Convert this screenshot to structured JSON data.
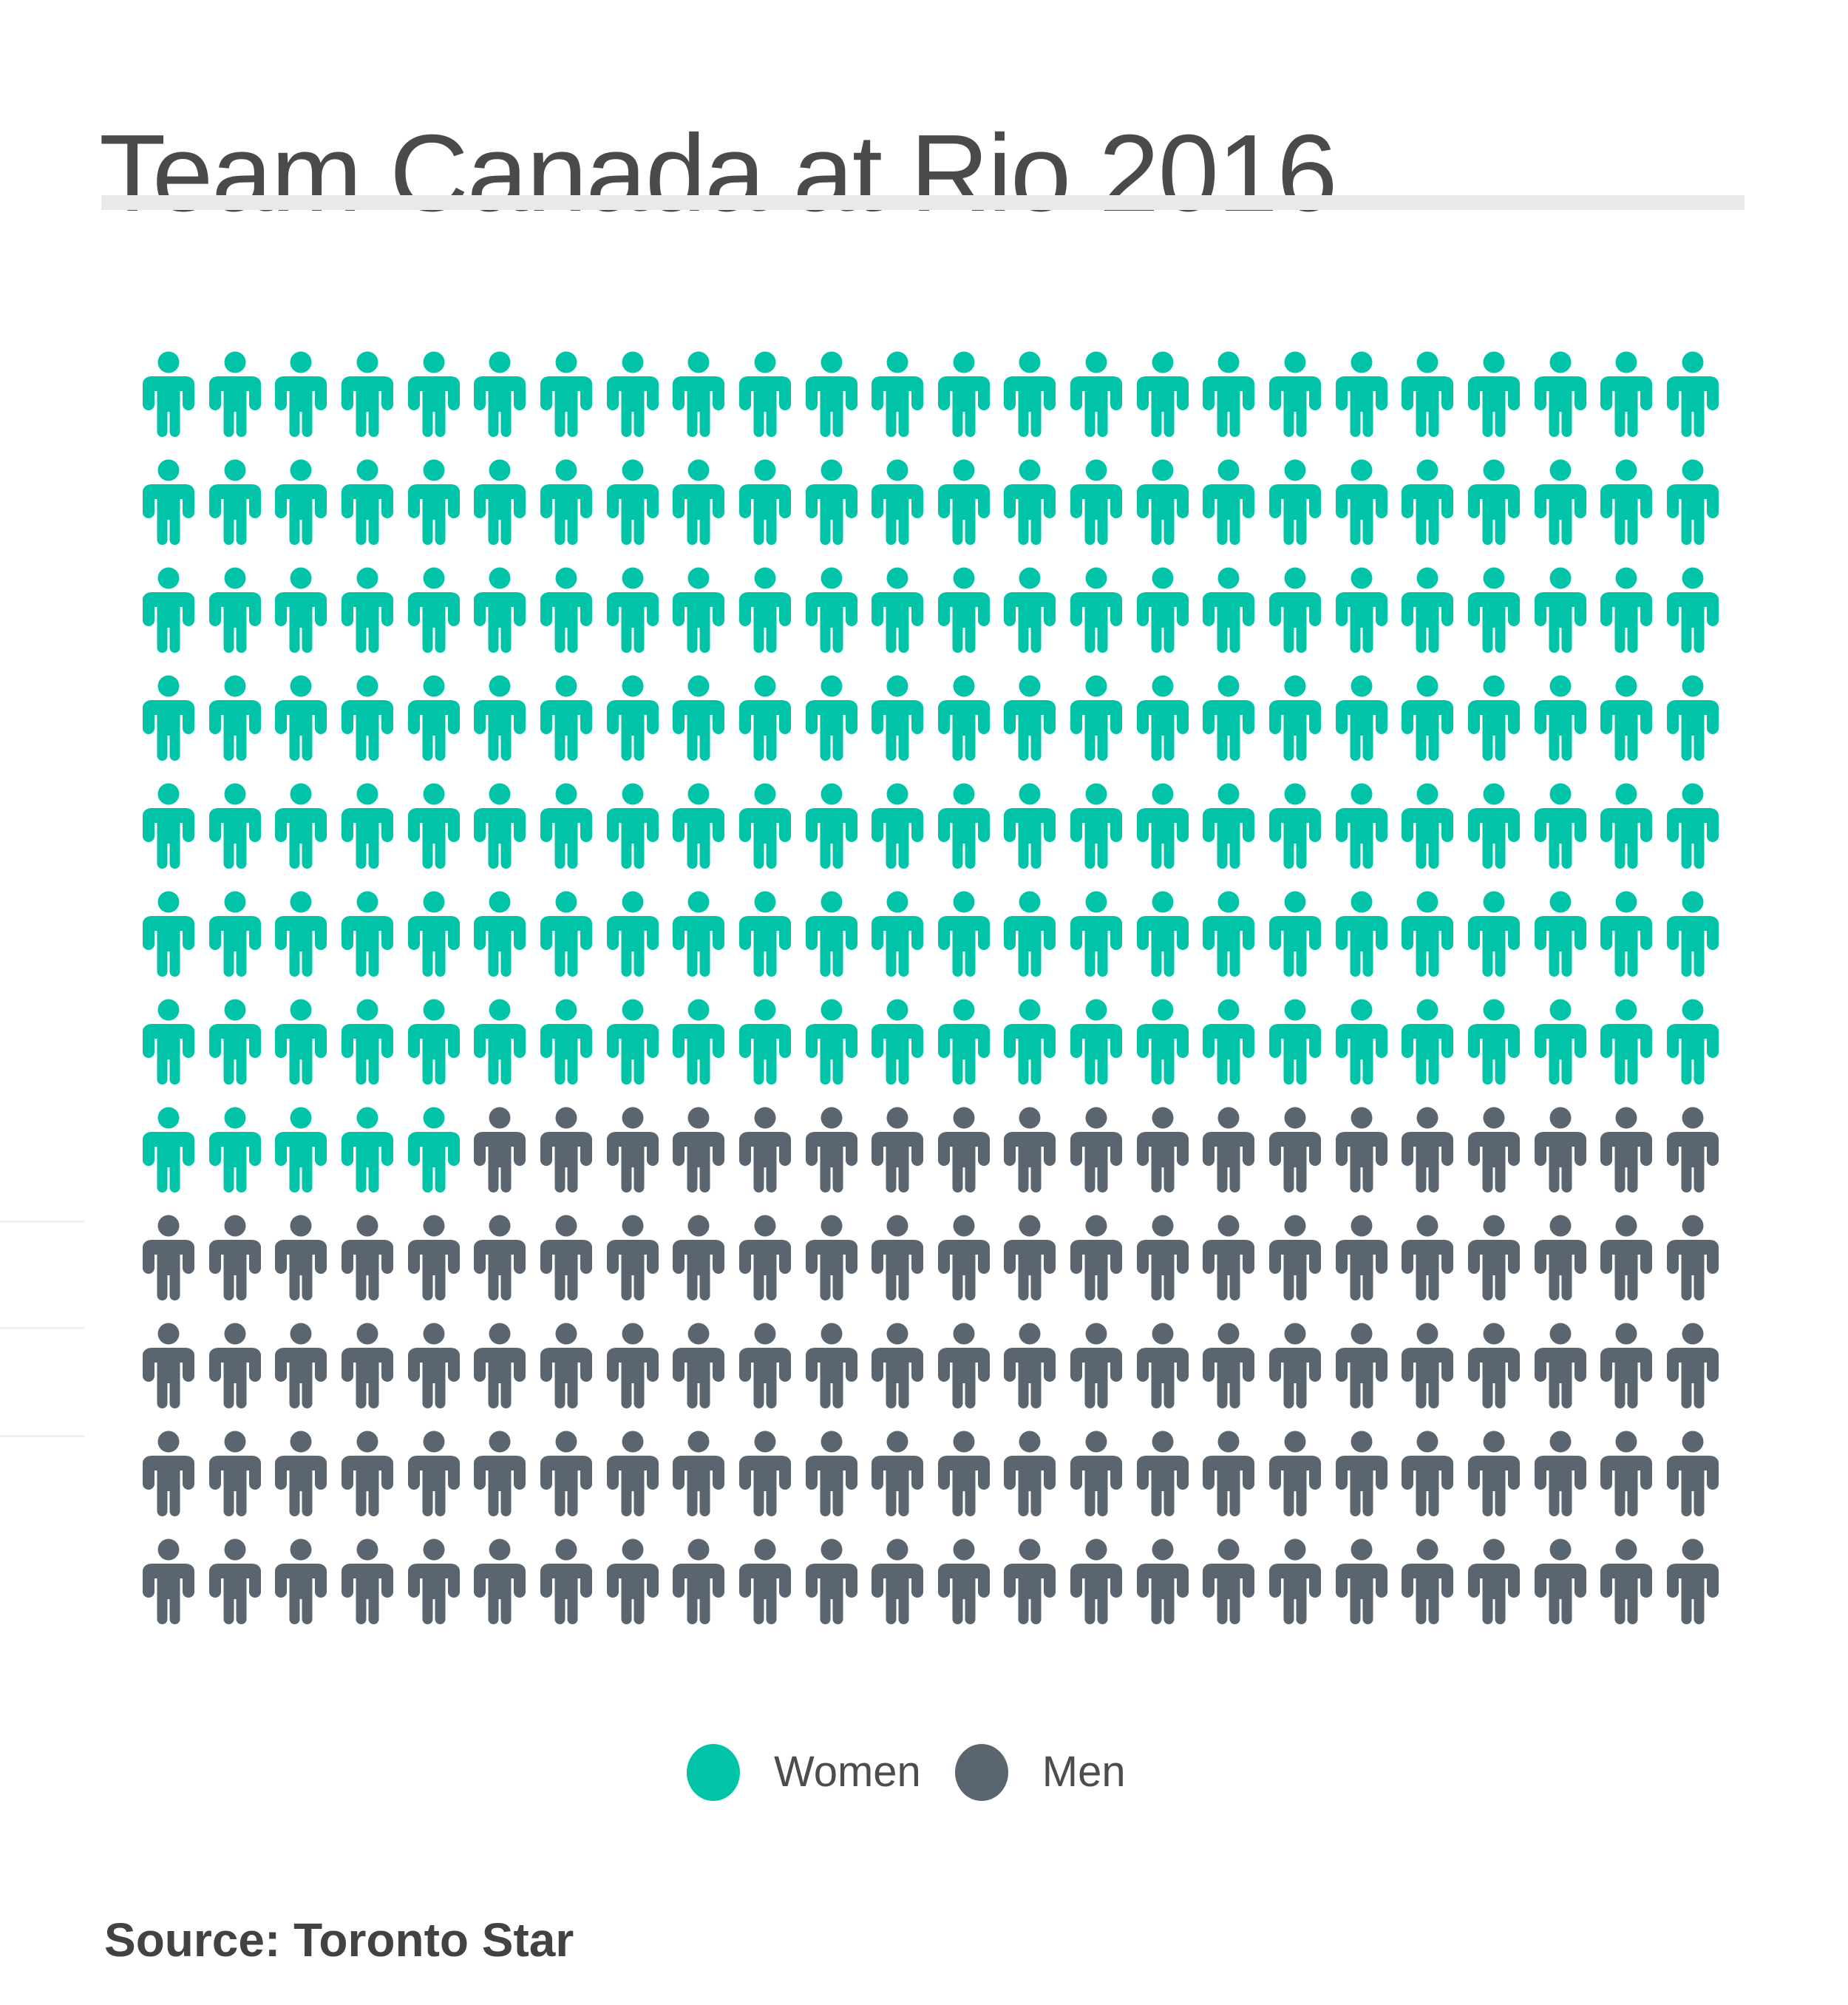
{
  "page": {
    "background": "#ffffff"
  },
  "header": {
    "title": "Team Canada at Rio 2016"
  },
  "chart_data": {
    "type": "pictogram",
    "title": "Team Canada at Rio 2016",
    "categories": [
      "Women",
      "Men"
    ],
    "values": [
      173,
      115
    ],
    "series": [
      {
        "name": "Women",
        "count": 173,
        "color": "#00c3a8"
      },
      {
        "name": "Men",
        "count": 115,
        "color": "#5a6570"
      }
    ],
    "icons_per_row": 24,
    "rows": 12,
    "total_icons": 288,
    "icon_glyph": "person-icon",
    "legend_position": "bottom-center",
    "grid": false
  },
  "legend": {
    "items": [
      {
        "label": "Women",
        "color": "#00c3a8"
      },
      {
        "label": "Men",
        "color": "#5a6570"
      }
    ]
  },
  "footer": {
    "source": "Source: Toronto Star"
  }
}
